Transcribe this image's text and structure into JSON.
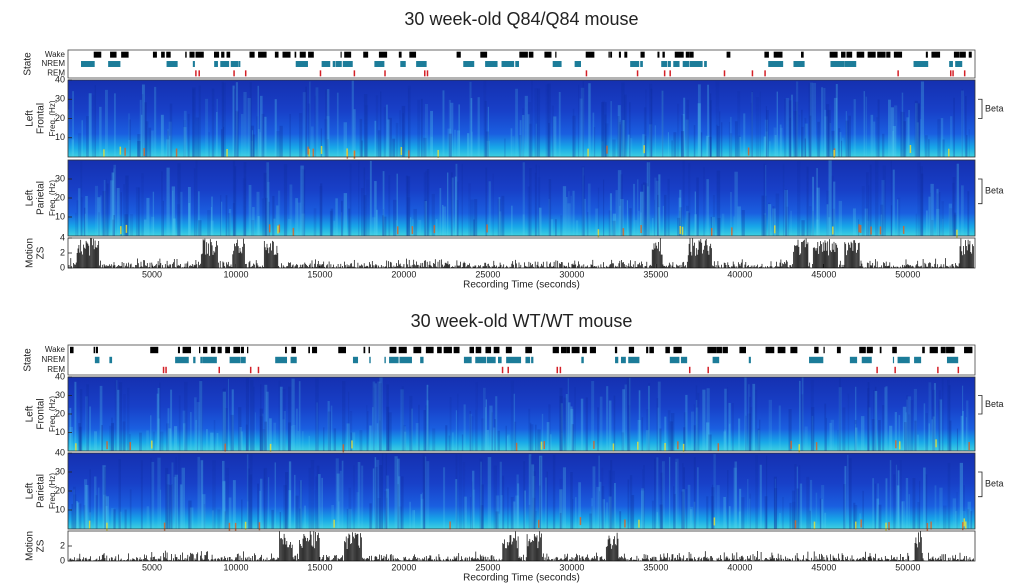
{
  "chart_data": [
    {
      "type": "spectrogram",
      "title": "30 week-old Q84/Q84 mouse",
      "xlabel": "Recording Time (seconds)",
      "xlim": [
        0,
        54000
      ],
      "xticks": [
        5000,
        10000,
        15000,
        20000,
        25000,
        30000,
        35000,
        40000,
        45000,
        50000
      ],
      "state_axis": "State",
      "states": [
        "Wake",
        "NREM",
        "REM"
      ],
      "state_colors": [
        "#000000",
        "#1c7c99",
        "#d42027"
      ],
      "panels": [
        {
          "label_lines": [
            "Left",
            "Frontal"
          ],
          "ylabel": "Freq. (Hz)",
          "ylim": [
            0,
            40
          ],
          "yticks": [
            10,
            20,
            30,
            40
          ],
          "band": "Beta",
          "band_range": [
            20,
            30
          ]
        },
        {
          "label_lines": [
            "Left",
            "Parietal"
          ],
          "ylabel": "Freq. (Hz)",
          "ylim": [
            0,
            40
          ],
          "yticks": [
            10,
            20,
            30
          ],
          "band": "Beta",
          "band_range": [
            17,
            30
          ]
        }
      ],
      "motion": {
        "label_lines": [
          "Motion",
          "ZS"
        ],
        "ylim": [
          0,
          4
        ],
        "yticks": [
          0,
          2,
          4
        ]
      }
    },
    {
      "type": "spectrogram",
      "title": "30 week-old WT/WT mouse",
      "xlabel": "Recording Time (seconds)",
      "xlim": [
        0,
        54000
      ],
      "xticks": [
        5000,
        10000,
        15000,
        20000,
        25000,
        30000,
        35000,
        40000,
        45000,
        50000
      ],
      "state_axis": "State",
      "states": [
        "Wake",
        "NREM",
        "REM"
      ],
      "state_colors": [
        "#000000",
        "#1c7c99",
        "#d42027"
      ],
      "panels": [
        {
          "label_lines": [
            "Left",
            "Frontal"
          ],
          "ylabel": "Freq. (Hz)",
          "ylim": [
            0,
            40
          ],
          "yticks": [
            10,
            20,
            30,
            40
          ],
          "band": "Beta",
          "band_range": [
            20,
            30
          ]
        },
        {
          "label_lines": [
            "Left",
            "Parietal"
          ],
          "ylabel": "Freq. (Hz)",
          "ylim": [
            0,
            40
          ],
          "yticks": [
            10,
            20,
            30,
            40
          ],
          "band": "Beta",
          "band_range": [
            17,
            30
          ]
        }
      ],
      "motion": {
        "label_lines": [
          "Motion",
          "ZS"
        ],
        "ylim": [
          0,
          4
        ],
        "yticks": [
          0,
          2
        ]
      }
    }
  ]
}
